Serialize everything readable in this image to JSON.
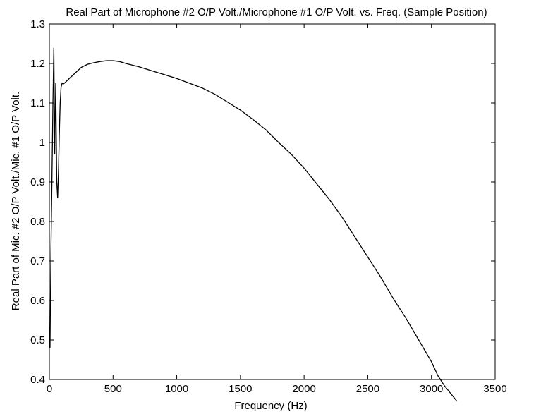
{
  "chart_data": {
    "type": "line",
    "title": "Real Part of Microphone #2 O/P Volt./Microphone #1 O/P Volt. vs. Freq. (Sample Position)",
    "xlabel": "Frequency (Hz)",
    "ylabel": "Real Part of Mic. #2 O/P Volt./Mic. #1 O/P Volt.",
    "xlim": [
      0,
      3500
    ],
    "ylim": [
      0.4,
      1.3
    ],
    "xticks": [
      "0",
      "500",
      "1000",
      "1500",
      "2000",
      "2500",
      "3000",
      "3500"
    ],
    "yticks": [
      "0.4",
      "0.5",
      "0.6",
      "0.7",
      "0.8",
      "0.9",
      "1",
      "1.1",
      "1.2",
      "1.3"
    ],
    "grid": false,
    "series": [
      {
        "color": "#000000",
        "x": [
          5,
          12,
          20,
          28,
          35,
          42,
          50,
          58,
          65,
          72,
          78,
          85,
          92,
          100,
          110,
          125,
          150,
          200,
          250,
          300,
          350,
          400,
          450,
          500,
          550,
          600,
          700,
          800,
          900,
          1000,
          1100,
          1200,
          1300,
          1400,
          1500,
          1600,
          1700,
          1800,
          1900,
          2000,
          2100,
          2200,
          2300,
          2400,
          2500,
          2600,
          2700,
          2800,
          2900,
          3000,
          3050,
          3100,
          3150,
          3200
        ],
        "y": [
          0.48,
          0.72,
          0.9,
          1.1,
          1.24,
          0.97,
          1.15,
          0.9,
          0.86,
          0.93,
          1.02,
          1.1,
          1.14,
          1.15,
          1.148,
          1.152,
          1.16,
          1.175,
          1.19,
          1.198,
          1.202,
          1.205,
          1.207,
          1.207,
          1.205,
          1.2,
          1.192,
          1.182,
          1.172,
          1.162,
          1.15,
          1.138,
          1.122,
          1.102,
          1.082,
          1.058,
          1.032,
          1.0,
          0.97,
          0.935,
          0.895,
          0.855,
          0.81,
          0.76,
          0.71,
          0.66,
          0.605,
          0.555,
          0.5,
          0.445,
          0.41,
          0.385,
          0.365,
          0.345
        ]
      }
    ]
  }
}
